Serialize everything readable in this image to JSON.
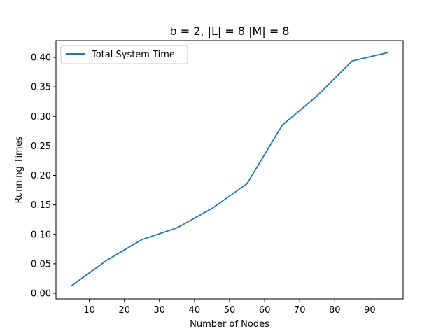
{
  "chart_data": {
    "type": "line",
    "title": "b = 2, |L| = 8 |M| = 8",
    "xlabel": "Number of Nodes",
    "ylabel": "Running Times",
    "x": [
      5,
      15,
      25,
      35,
      45,
      55,
      65,
      75,
      85,
      95
    ],
    "series": [
      {
        "name": "Total System Time",
        "color": "#1f77b4",
        "values": [
          0.013,
          0.056,
          0.091,
          0.111,
          0.144,
          0.186,
          0.285,
          0.335,
          0.394,
          0.408
        ]
      }
    ],
    "xlim": [
      0.5,
      99.5
    ],
    "ylim": [
      -0.0095,
      0.4285
    ],
    "xticks": [
      10,
      20,
      30,
      40,
      50,
      60,
      70,
      80,
      90
    ],
    "yticks": [
      0.0,
      0.05,
      0.1,
      0.15,
      0.2,
      0.25,
      0.3,
      0.35,
      0.4
    ],
    "ytick_labels": [
      "0.00",
      "0.05",
      "0.10",
      "0.15",
      "0.20",
      "0.25",
      "0.30",
      "0.35",
      "0.40"
    ],
    "grid": false,
    "legend": "upper-left"
  }
}
